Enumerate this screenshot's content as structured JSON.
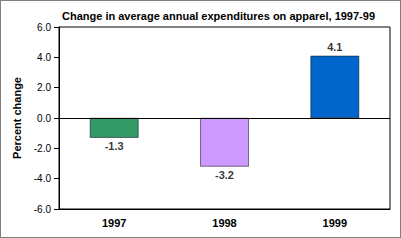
{
  "chart_data": {
    "type": "bar",
    "title": "Change in average annual expenditures on apparel, 1997-99",
    "y_label": "Percent change",
    "categories": [
      "1997",
      "1998",
      "1999"
    ],
    "values": [
      -1.3,
      -3.2,
      4.1
    ],
    "colors": [
      "#339966",
      "#cc99ff",
      "#0066cc"
    ],
    "ylim": [
      -6,
      6
    ],
    "yticks": [
      {
        "value": -6,
        "label": "-6.0"
      },
      {
        "value": -4,
        "label": "-4.0"
      },
      {
        "value": -2,
        "label": "-2.0"
      },
      {
        "value": 0,
        "label": "0.0"
      },
      {
        "value": 2,
        "label": "2.0"
      },
      {
        "value": 4,
        "label": "4.0"
      },
      {
        "value": 6,
        "label": "6.0"
      }
    ],
    "grid": false,
    "data_labels": true
  }
}
